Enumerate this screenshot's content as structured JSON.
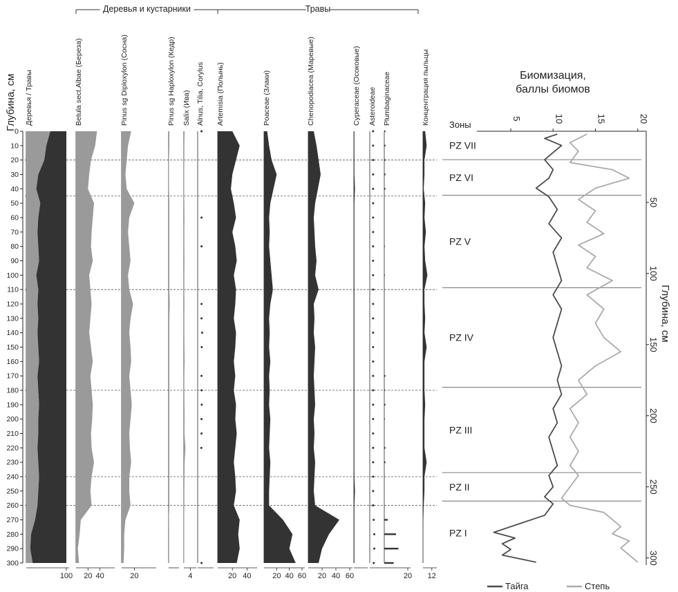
{
  "chart_data": [
    {
      "type": "area",
      "title": "",
      "ylabel": "Глубина, см",
      "depth_range": [
        0,
        300
      ],
      "depth_ticks": [
        0,
        10,
        20,
        30,
        40,
        50,
        60,
        70,
        80,
        90,
        100,
        110,
        120,
        130,
        140,
        150,
        160,
        170,
        180,
        190,
        200,
        210,
        220,
        230,
        240,
        250,
        260,
        270,
        280,
        290,
        300
      ],
      "group_headers": [
        {
          "label": "Деревья и кустарники"
        },
        {
          "label": "Травы"
        }
      ],
      "zone_boundaries": [
        20,
        45,
        110,
        180,
        240,
        260
      ],
      "depths": [
        0,
        10,
        20,
        30,
        40,
        50,
        60,
        70,
        80,
        90,
        100,
        110,
        120,
        130,
        140,
        150,
        160,
        170,
        180,
        190,
        200,
        210,
        220,
        230,
        240,
        250,
        260,
        270,
        280,
        290,
        300
      ],
      "taxa": [
        {
          "label": "Деревья / Травы",
          "xlim": [
            0,
            100
          ],
          "ticks": [
            "100"
          ],
          "style": "ratio",
          "color": "#9a9a9a",
          "color2": "#333333",
          "values": [
            60,
            50,
            45,
            30,
            25,
            35,
            30,
            28,
            30,
            32,
            25,
            30,
            28,
            30,
            28,
            30,
            32,
            28,
            30,
            32,
            30,
            30,
            28,
            30,
            32,
            30,
            28,
            22,
            12,
            10,
            16
          ]
        },
        {
          "label": "Betula sect.Albae (Береза)",
          "xlim": [
            0,
            60
          ],
          "ticks": [
            "20",
            "40"
          ],
          "style": "area",
          "color": "#9a9a9a",
          "values": [
            35,
            32,
            25,
            22,
            20,
            30,
            28,
            26,
            25,
            28,
            22,
            24,
            26,
            24,
            22,
            25,
            28,
            24,
            26,
            28,
            27,
            25,
            26,
            30,
            26,
            24,
            26,
            8,
            6,
            3,
            5
          ]
        },
        {
          "label": "Pinus sg Diploxylon (Сосна)",
          "xlim": [
            0,
            50
          ],
          "ticks": [
            "20"
          ],
          "style": "area",
          "color": "#9a9a9a",
          "values": [
            15,
            10,
            8,
            6,
            8,
            20,
            12,
            10,
            12,
            14,
            10,
            12,
            18,
            14,
            12,
            14,
            15,
            12,
            14,
            16,
            14,
            12,
            13,
            15,
            12,
            12,
            14,
            6,
            4,
            4,
            3
          ]
        },
        {
          "label": "Pinus sg Haploxylon (Кедр)",
          "xlim": [
            0,
            10
          ],
          "ticks": [],
          "style": "area",
          "color": "#9a9a9a",
          "values": [
            1,
            1,
            0.5,
            0.5,
            0.5,
            1,
            1,
            1,
            1,
            1,
            1,
            1,
            1.5,
            1,
            1,
            1,
            1,
            1,
            1,
            1,
            1,
            1,
            1,
            1,
            1,
            1,
            1,
            0.3,
            0.2,
            0.2,
            0.2
          ]
        },
        {
          "label": "Salix (Ива)",
          "xlim": [
            0,
            6
          ],
          "ticks": [
            "4"
          ],
          "style": "area",
          "color": "#9a9a9a",
          "values": [
            0.5,
            0.3,
            0.3,
            0.2,
            0.2,
            0.3,
            0.4,
            0.3,
            0.3,
            0.4,
            0.3,
            0.3,
            0.4,
            0.3,
            0.3,
            0.4,
            0.5,
            0.3,
            0.3,
            0.4,
            0.5,
            0.4,
            1,
            0.5,
            0.4,
            0.3,
            0.3,
            0.2,
            0.2,
            0.2,
            0.2
          ]
        },
        {
          "label": "Alnus, Tilia, Corylus",
          "xlim": [
            0,
            6
          ],
          "ticks": [],
          "style": "dots",
          "color": "#333333",
          "values": [
            0.5,
            0,
            0,
            0,
            0,
            0,
            0.5,
            0,
            0.5,
            0,
            0,
            0,
            0.5,
            0.5,
            0.8,
            0.6,
            0,
            0.5,
            0.5,
            0.6,
            0.5,
            0.5,
            0.4,
            0,
            0,
            0,
            0,
            0,
            0,
            0,
            0.5
          ]
        },
        {
          "label": "Artemisia (Полынь)",
          "xlim": [
            0,
            50
          ],
          "ticks": [
            "20",
            "40"
          ],
          "style": "area",
          "color": "#333333",
          "values": [
            20,
            30,
            25,
            20,
            18,
            22,
            25,
            20,
            24,
            26,
            22,
            25,
            24,
            22,
            25,
            24,
            22,
            24,
            22,
            25,
            24,
            26,
            24,
            22,
            24,
            25,
            22,
            30,
            28,
            30,
            26
          ]
        },
        {
          "label": "Poaceae (Злаки)",
          "xlim": [
            0,
            60
          ],
          "ticks": [
            "20",
            "40",
            "60"
          ],
          "style": "area",
          "color": "#333333",
          "values": [
            5,
            8,
            12,
            20,
            15,
            10,
            8,
            9,
            8,
            10,
            12,
            14,
            10,
            8,
            9,
            8,
            10,
            8,
            9,
            8,
            10,
            9,
            8,
            10,
            9,
            8,
            8,
            30,
            45,
            40,
            50
          ]
        },
        {
          "label": "Chenopodiacea (Маревые)",
          "xlim": [
            0,
            60
          ],
          "ticks": [
            "20",
            "40",
            "60"
          ],
          "style": "area",
          "color": "#333333",
          "values": [
            8,
            12,
            15,
            18,
            14,
            10,
            8,
            9,
            10,
            12,
            10,
            15,
            8,
            9,
            8,
            10,
            9,
            8,
            9,
            10,
            8,
            9,
            8,
            10,
            9,
            8,
            10,
            45,
            30,
            20,
            15
          ]
        },
        {
          "label": "Cyperaceae (Осоковые)",
          "xlim": [
            0,
            20
          ],
          "ticks": [],
          "style": "area",
          "color": "#333333",
          "values": [
            1,
            1,
            1,
            1,
            2,
            1,
            1,
            1,
            1,
            1,
            1,
            1,
            1,
            1,
            1,
            1,
            1,
            1,
            1,
            1,
            1,
            1,
            1,
            1,
            1,
            2,
            1,
            1,
            1,
            1,
            1
          ]
        },
        {
          "label": "Asteroideae",
          "xlim": [
            0,
            10
          ],
          "ticks": [],
          "style": "dots",
          "color": "#333333",
          "values": [
            0.5,
            0.5,
            0.5,
            0.5,
            0.5,
            0.5,
            0.5,
            0.5,
            0.5,
            0.5,
            0.5,
            0.5,
            0.5,
            0.5,
            0.5,
            0.5,
            0.5,
            0.5,
            0.5,
            0.5,
            0.5,
            0.5,
            0.5,
            0.5,
            0.5,
            0.5,
            0.5,
            1,
            1.5,
            1.5,
            1
          ]
        },
        {
          "label": "Plumbaginaceae",
          "xlim": [
            0,
            20
          ],
          "ticks": [
            "20"
          ],
          "style": "bars",
          "color": "#333333",
          "values": [
            1,
            1,
            1,
            1,
            1,
            0,
            0,
            0,
            0.5,
            0,
            0.5,
            0,
            0,
            0,
            0,
            0,
            0,
            1,
            0.5,
            1,
            0.5,
            0,
            1,
            1,
            0,
            0,
            0,
            3,
            10,
            12,
            8
          ]
        },
        {
          "label": "Концентрация пыльцы",
          "xlim": [
            0,
            15
          ],
          "ticks": [
            "12"
          ],
          "style": "area",
          "color": "#333333",
          "values": [
            3,
            5,
            2,
            2,
            1,
            3,
            2,
            4,
            2,
            3,
            6,
            2,
            2,
            3,
            2,
            5,
            2,
            2,
            2,
            3,
            2,
            2,
            2,
            5,
            2,
            2,
            1,
            0.5,
            0.3,
            0.3,
            0.3
          ]
        }
      ]
    },
    {
      "type": "line",
      "title": "Биомизация, баллы биомов",
      "xlabel": "Биомизация, баллы биомов",
      "ylabel": "Глубина, см",
      "xlim": [
        1,
        21
      ],
      "ylim": [
        0,
        305
      ],
      "x_ticks": [
        5,
        10,
        15,
        20
      ],
      "y_ticks": [
        50,
        100,
        150,
        200,
        250,
        300
      ],
      "zones_label": "Зоны",
      "zones": [
        {
          "name": "PZ VII",
          "top": 0,
          "bottom": 20
        },
        {
          "name": "PZ VI",
          "top": 20,
          "bottom": 45
        },
        {
          "name": "PZ V",
          "top": 45,
          "bottom": 110
        },
        {
          "name": "PZ IV",
          "top": 110,
          "bottom": 180
        },
        {
          "name": "PZ III",
          "top": 180,
          "bottom": 240
        },
        {
          "name": "PZ II",
          "top": 240,
          "bottom": 260
        },
        {
          "name": "PZ I",
          "top": 260,
          "bottom": 305
        }
      ],
      "series": [
        {
          "name": "Тайга",
          "color": "#4a4a4a",
          "x": [
            10.5,
            9,
            11,
            9,
            10,
            9.5,
            8,
            9.5,
            10.5,
            9.5,
            11,
            10,
            10.5,
            11,
            10,
            11,
            10.5,
            10,
            10.5,
            11,
            10.5,
            11,
            10,
            10.5,
            9.5,
            10,
            10.5,
            9.5,
            10,
            9,
            10,
            9.5,
            9,
            6.5,
            5,
            3,
            5.5,
            4,
            5,
            4,
            8
          ],
          "depth": [
            2,
            5,
            10,
            20,
            27,
            33,
            40,
            46,
            55,
            65,
            75,
            85,
            95,
            105,
            115,
            125,
            135,
            145,
            155,
            165,
            175,
            185,
            195,
            205,
            215,
            225,
            235,
            242,
            250,
            257,
            262,
            266,
            270,
            275,
            278,
            282,
            286,
            290,
            294,
            298,
            303
          ]
        },
        {
          "name": "Степь",
          "color": "#aaaaaa",
          "x": [
            14,
            12,
            13,
            12,
            17,
            19,
            15,
            13,
            15,
            14,
            16,
            13,
            15,
            14,
            17,
            14,
            16,
            15,
            16,
            18,
            15,
            13,
            14,
            12,
            13,
            12,
            13,
            12,
            13,
            12,
            11,
            12,
            16,
            17,
            18,
            17,
            19,
            18,
            19,
            20
          ],
          "depth": [
            2,
            8,
            14,
            22,
            27,
            33,
            40,
            48,
            56,
            64,
            72,
            80,
            88,
            96,
            105,
            115,
            125,
            135,
            145,
            155,
            165,
            175,
            185,
            195,
            205,
            215,
            225,
            235,
            242,
            250,
            258,
            263,
            268,
            273,
            278,
            283,
            288,
            293,
            298,
            303
          ]
        }
      ]
    }
  ]
}
